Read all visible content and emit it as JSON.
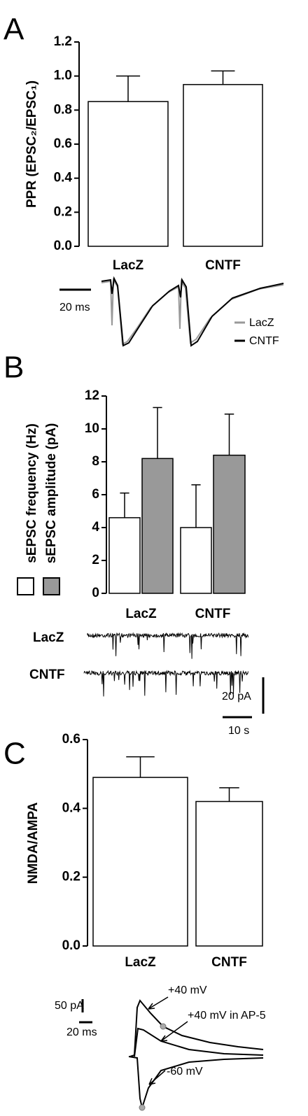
{
  "chart_data": [
    {
      "type": "bar",
      "panel": "A",
      "ylabel": "PPR (EPSC₂/EPSC₁)",
      "categories": [
        "LacZ",
        "CNTF"
      ],
      "series": [
        {
          "color": "#ffffff",
          "values": [
            0.85,
            0.95
          ],
          "errors": [
            0.15,
            0.08
          ]
        }
      ],
      "ylim": [
        0,
        1.2
      ],
      "yticks": [
        {
          "value": 0,
          "label": "0.0"
        },
        0.2,
        0.4,
        0.6,
        0.8,
        {
          "value": 1,
          "label": "1.0"
        },
        1.2
      ],
      "trace_legend": [
        {
          "name": "LacZ",
          "color": "#999999"
        },
        {
          "name": "CNTF",
          "color": "#000000"
        }
      ],
      "scale_bars": [
        "20 ms"
      ]
    },
    {
      "type": "bar",
      "panel": "B",
      "categories": [
        "LacZ",
        "CNTF"
      ],
      "series": [
        {
          "name": "sEPSC frequency (Hz)",
          "color": "#ffffff",
          "values": [
            4.6,
            4.0
          ],
          "errors": [
            1.5,
            2.6
          ]
        },
        {
          "name": "sEPSC amplitude (pA)",
          "color": "#999999",
          "values": [
            8.2,
            8.4
          ],
          "errors": [
            3.1,
            2.5
          ]
        }
      ],
      "ylim": [
        0,
        12
      ],
      "yticks": [
        0,
        2,
        4,
        6,
        8,
        10,
        12
      ],
      "trace_labels": [
        "LacZ",
        "CNTF"
      ],
      "scale_bars": [
        "20 pA",
        "10 s"
      ]
    },
    {
      "type": "bar",
      "panel": "C",
      "ylabel": "NMDA/AMPA",
      "categories": [
        "LacZ",
        "CNTF"
      ],
      "series": [
        {
          "color": "#ffffff",
          "values": [
            0.49,
            0.42
          ],
          "errors": [
            0.06,
            0.04
          ]
        }
      ],
      "ylim": [
        0,
        0.6
      ],
      "yticks": [
        {
          "value": 0,
          "label": "0.0"
        },
        0.2,
        0.4,
        0.6
      ],
      "annotations": [
        "+40 mV",
        "+40 mV in AP-5",
        "-60 mV"
      ],
      "scale_bars": [
        "50 pA",
        "20 ms"
      ]
    }
  ]
}
